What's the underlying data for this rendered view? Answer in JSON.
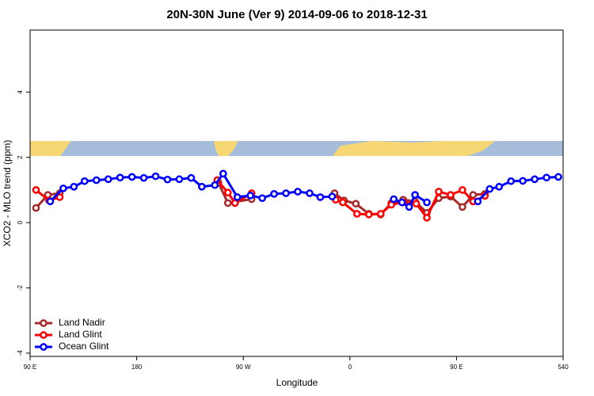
{
  "chart_data": {
    "type": "line",
    "title": "20N-30N June (Ver 9)   2014-09-06 to 2018-12-31",
    "x_label": "Longitude",
    "y_label": "XCO2 - MLO trend (ppm)",
    "xlim": [
      90,
      540
    ],
    "xticks": [
      {
        "value": 90,
        "label": "90 E"
      },
      180,
      {
        "value": 270,
        "label": "90 W"
      },
      {
        "value": 360,
        "label": "0"
      },
      {
        "value": 450,
        "label": "90 E"
      },
      540
    ],
    "ylim": [
      -4.1,
      5.9
    ],
    "yticks": [
      -4,
      -2,
      0,
      2,
      4
    ],
    "legend": "bottom-left",
    "series": [
      {
        "name": "Land Nadir",
        "color": "#a52a2a",
        "x": [
          95,
          105,
          115,
          null,
          249,
          257,
          277,
          null,
          347,
          355,
          365,
          376,
          386,
          395,
          405,
          415,
          425,
          435,
          445,
          455,
          464,
          474
        ],
        "values": [
          0.45,
          0.85,
          0.9,
          null,
          1.22,
          0.6,
          0.72,
          null,
          0.9,
          0.68,
          0.58,
          0.27,
          0.25,
          0.6,
          0.7,
          0.65,
          0.3,
          0.75,
          0.8,
          0.48,
          0.85,
          0.88
        ]
      },
      {
        "name": "Land Glint",
        "color": "#ff0000",
        "x": [
          95,
          106,
          115,
          null,
          248,
          257,
          263,
          277,
          null,
          348,
          354,
          366,
          376,
          386,
          395,
          405,
          416,
          425,
          435,
          445,
          455,
          464,
          474
        ],
        "values": [
          1.0,
          0.68,
          0.78,
          null,
          1.3,
          0.92,
          0.6,
          0.9,
          null,
          0.7,
          0.62,
          0.27,
          0.25,
          0.27,
          0.55,
          0.62,
          0.58,
          0.15,
          0.95,
          0.85,
          1.0,
          0.65,
          0.82
        ]
      },
      {
        "name": "Ocean Glint",
        "color": "#0000ff",
        "x": [
          107,
          118,
          127,
          136,
          146,
          156,
          166,
          176,
          186,
          196,
          206,
          216,
          226,
          235,
          246,
          253,
          265,
          276,
          286,
          296,
          306,
          316,
          326,
          335,
          345,
          null,
          397,
          404,
          410,
          415,
          425,
          null,
          468,
          478,
          486,
          496,
          506,
          516,
          526,
          536
        ],
        "values": [
          0.65,
          1.05,
          1.1,
          1.27,
          1.3,
          1.33,
          1.38,
          1.4,
          1.37,
          1.42,
          1.32,
          1.33,
          1.37,
          1.1,
          1.15,
          1.5,
          0.78,
          0.83,
          0.75,
          0.88,
          0.9,
          0.95,
          0.9,
          0.78,
          0.8,
          null,
          0.72,
          0.62,
          0.48,
          0.85,
          0.62,
          null,
          0.65,
          1.03,
          1.1,
          1.27,
          1.28,
          1.33,
          1.38,
          1.4
        ]
      }
    ]
  }
}
